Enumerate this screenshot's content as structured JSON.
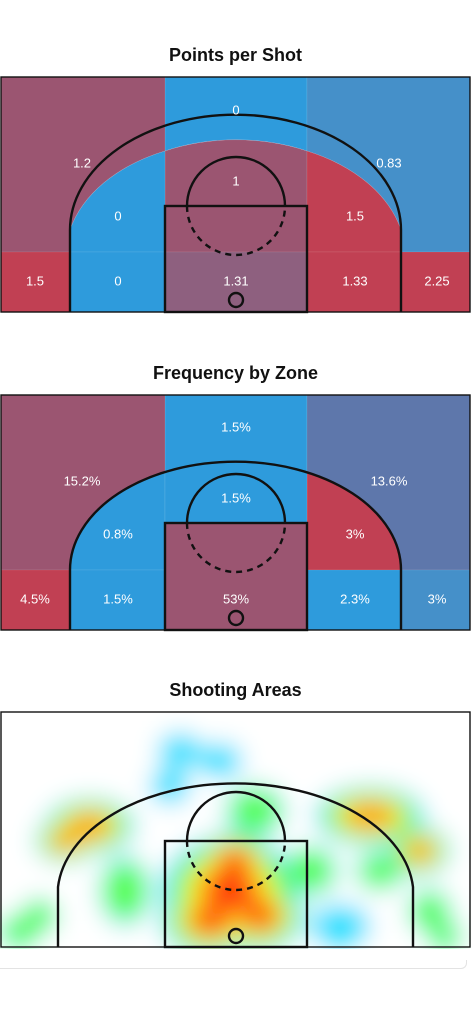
{
  "colors": {
    "red": "#c14053",
    "blue": "#2e9bdc",
    "mauve": "#9b5571",
    "mauve_dark": "#8e607f",
    "slate_blue": "#5e77ab",
    "mid_blue": "#4590c9"
  },
  "chart_data": [
    {
      "type": "heatmap",
      "title": "Points per Shot",
      "zones": [
        {
          "zone": "top-center",
          "label": "0",
          "color": "#2e9bdc"
        },
        {
          "zone": "left-wing",
          "label": "1.2",
          "color": "#9b5571"
        },
        {
          "zone": "right-wing",
          "label": "0.83",
          "color": "#4590c9"
        },
        {
          "zone": "top-of-key",
          "label": "1",
          "color": "#9b5571"
        },
        {
          "zone": "left-midrange",
          "label": "0",
          "color": "#2e9bdc"
        },
        {
          "zone": "right-midrange",
          "label": "1.5",
          "color": "#c14053"
        },
        {
          "zone": "left-corner",
          "label": "1.5",
          "color": "#c14053"
        },
        {
          "zone": "left-baseline",
          "label": "0",
          "color": "#2e9bdc"
        },
        {
          "zone": "paint",
          "label": "1.31",
          "color": "#8e607f"
        },
        {
          "zone": "right-baseline",
          "label": "1.33",
          "color": "#c14053"
        },
        {
          "zone": "right-corner",
          "label": "2.25",
          "color": "#c14053"
        }
      ]
    },
    {
      "type": "heatmap",
      "title": "Frequency by Zone",
      "zones": [
        {
          "zone": "top-center",
          "label": "1.5%",
          "color": "#2e9bdc"
        },
        {
          "zone": "left-wing",
          "label": "15.2%",
          "color": "#9b5571"
        },
        {
          "zone": "right-wing",
          "label": "13.6%",
          "color": "#5e77ab"
        },
        {
          "zone": "top-of-key",
          "label": "1.5%",
          "color": "#2e9bdc"
        },
        {
          "zone": "left-midrange",
          "label": "0.8%",
          "color": "#2e9bdc"
        },
        {
          "zone": "right-midrange",
          "label": "3%",
          "color": "#c14053"
        },
        {
          "zone": "left-corner",
          "label": "4.5%",
          "color": "#c14053"
        },
        {
          "zone": "left-baseline",
          "label": "1.5%",
          "color": "#2e9bdc"
        },
        {
          "zone": "paint",
          "label": "53%",
          "color": "#9b5571"
        },
        {
          "zone": "right-baseline",
          "label": "2.3%",
          "color": "#2e9bdc"
        },
        {
          "zone": "right-corner",
          "label": "3%",
          "color": "#4590c9"
        }
      ]
    },
    {
      "type": "heatmap",
      "title": "Shooting Areas",
      "color_scale": [
        "#1e6eff",
        "#22e0ff",
        "#5cff48",
        "#f6ff22",
        "#ffa21a",
        "#ff1a00"
      ],
      "hotspots": [
        {
          "area": "paint",
          "intensity": 1.0
        },
        {
          "area": "left-wing",
          "intensity": 0.85
        },
        {
          "area": "right-wing",
          "intensity": 0.8
        },
        {
          "area": "right-midrange",
          "intensity": 0.55
        },
        {
          "area": "left-midrange",
          "intensity": 0.4
        },
        {
          "area": "top-of-key",
          "intensity": 0.5
        },
        {
          "area": "above-arc",
          "intensity": 0.35
        },
        {
          "area": "left-corner",
          "intensity": 0.45
        },
        {
          "area": "right-corner",
          "intensity": 0.4
        },
        {
          "area": "right-baseline",
          "intensity": 0.3
        }
      ]
    }
  ]
}
